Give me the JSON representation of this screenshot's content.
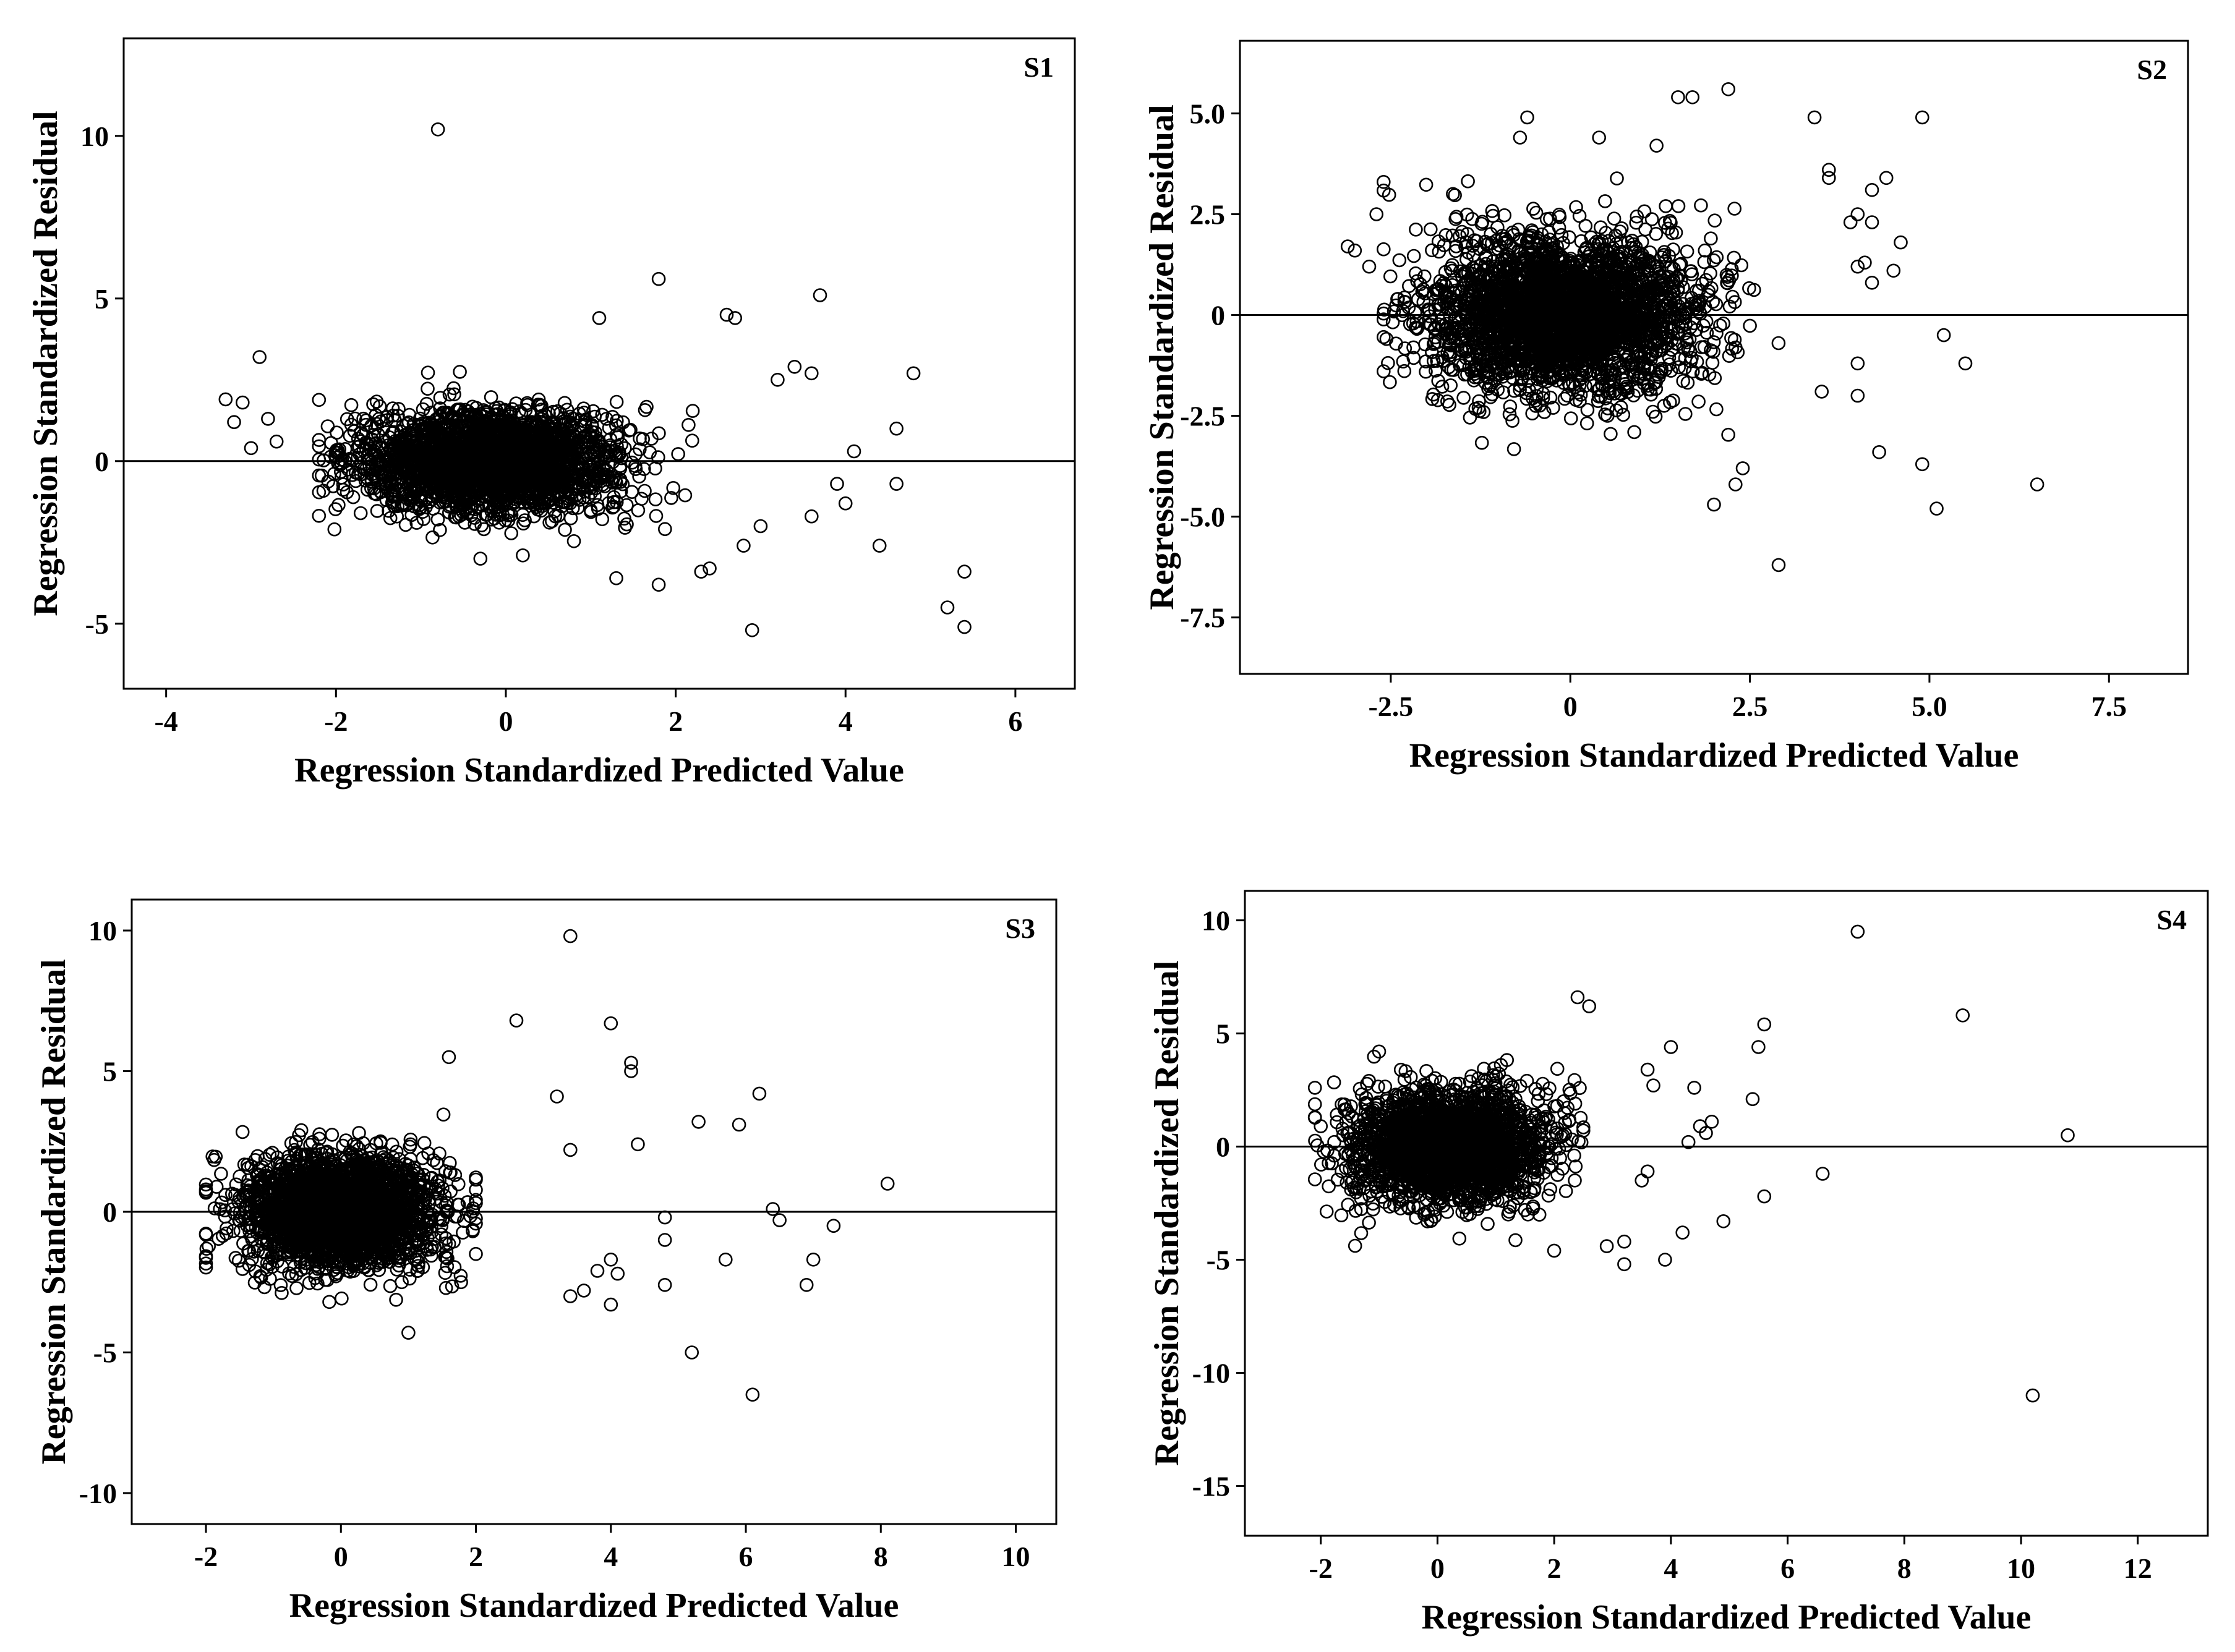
{
  "figure": {
    "color_points": "#000000",
    "color_axes": "#000000"
  },
  "chart_data": [
    {
      "type": "scatter",
      "title": "S1",
      "xlabel": "Regression Standardized Predicted Value",
      "ylabel": "Regression Standardized Residual",
      "xlim": [
        -4.5,
        6.7
      ],
      "ylim": [
        -7,
        13
      ],
      "xticks": [
        -4,
        -2,
        0,
        2,
        4,
        6
      ],
      "xtick_labels": [
        "-4",
        "-2",
        "0",
        "2",
        "4",
        "6"
      ],
      "yticks": [
        -5,
        0,
        5,
        10
      ],
      "ytick_labels": [
        "-5",
        "0",
        "5",
        "10"
      ],
      "reference_line_y": 0,
      "cluster": {
        "center_x": -0.2,
        "spread_x": 0.75,
        "spread_y": 0.7,
        "count": 2600,
        "x_range": [
          -2.2,
          2.2
        ]
      },
      "outliers": [
        [
          -0.8,
          10.2
        ],
        [
          1.8,
          5.6
        ],
        [
          3.7,
          5.1
        ],
        [
          2.6,
          4.5
        ],
        [
          2.7,
          4.4
        ],
        [
          1.1,
          4.4
        ],
        [
          4.8,
          2.7
        ],
        [
          3.4,
          2.9
        ],
        [
          3.6,
          2.7
        ],
        [
          3.2,
          2.5
        ],
        [
          4.6,
          1.0
        ],
        [
          4.1,
          0.3
        ],
        [
          3.9,
          -0.7
        ],
        [
          4.6,
          -0.7
        ],
        [
          4.0,
          -1.3
        ],
        [
          3.6,
          -1.7
        ],
        [
          3.0,
          -2.0
        ],
        [
          4.4,
          -2.6
        ],
        [
          2.8,
          -2.6
        ],
        [
          2.3,
          -3.4
        ],
        [
          2.4,
          -3.3
        ],
        [
          2.9,
          -5.2
        ],
        [
          5.4,
          -3.4
        ],
        [
          5.2,
          -4.5
        ],
        [
          5.4,
          -5.1
        ],
        [
          1.3,
          -3.6
        ],
        [
          1.8,
          -3.8
        ],
        [
          -2.9,
          3.2
        ],
        [
          -3.3,
          1.9
        ],
        [
          -3.1,
          1.8
        ],
        [
          -3.2,
          1.2
        ],
        [
          -2.8,
          1.3
        ],
        [
          -3.0,
          0.4
        ],
        [
          -2.7,
          0.6
        ],
        [
          -0.3,
          -3.0
        ],
        [
          0.2,
          -2.9
        ]
      ]
    },
    {
      "type": "scatter",
      "title": "S2",
      "xlabel": "Regression Standardized Predicted Value",
      "ylabel": "Regression Standardized Residual",
      "xlim": [
        -4.6,
        8.6
      ],
      "ylim": [
        -8.9,
        6.8
      ],
      "xticks": [
        -2.5,
        0,
        2.5,
        5.0,
        7.5
      ],
      "xtick_labels": [
        "-2.5",
        "0",
        "2.5",
        "5.0",
        "7.5"
      ],
      "yticks": [
        -7.5,
        -5.0,
        -2.5,
        0,
        2.5,
        5.0
      ],
      "ytick_labels": [
        "-7.5",
        "-5.0",
        "-2.5",
        "0",
        "2.5",
        "5.0"
      ],
      "reference_line_y": 0,
      "cluster": {
        "center_x": -0.1,
        "spread_x": 0.9,
        "spread_y": 0.85,
        "count": 3000,
        "x_range": [
          -2.6,
          3.5
        ]
      },
      "outliers": [
        [
          -0.6,
          4.9
        ],
        [
          1.5,
          5.4
        ],
        [
          1.7,
          5.4
        ],
        [
          2.2,
          5.6
        ],
        [
          3.4,
          4.9
        ],
        [
          4.9,
          4.9
        ],
        [
          0.4,
          4.4
        ],
        [
          -0.7,
          4.4
        ],
        [
          1.2,
          4.2
        ],
        [
          3.6,
          3.6
        ],
        [
          3.6,
          3.4
        ],
        [
          4.4,
          3.4
        ],
        [
          4.2,
          3.1
        ],
        [
          4.0,
          2.5
        ],
        [
          3.9,
          2.3
        ],
        [
          4.2,
          2.3
        ],
        [
          4.6,
          1.8
        ],
        [
          4.5,
          1.1
        ],
        [
          4.1,
          1.3
        ],
        [
          4.0,
          1.2
        ],
        [
          4.2,
          0.8
        ],
        [
          5.2,
          -0.5
        ],
        [
          5.5,
          -1.2
        ],
        [
          4.0,
          -1.2
        ],
        [
          3.5,
          -1.9
        ],
        [
          4.0,
          -2.0
        ],
        [
          4.3,
          -3.4
        ],
        [
          4.9,
          -3.7
        ],
        [
          5.1,
          -4.8
        ],
        [
          6.5,
          -4.2
        ],
        [
          2.9,
          -6.2
        ],
        [
          2.0,
          -4.7
        ],
        [
          2.3,
          -4.2
        ],
        [
          2.4,
          -3.8
        ],
        [
          -3.0,
          1.6
        ],
        [
          -2.8,
          1.2
        ],
        [
          -2.7,
          2.5
        ],
        [
          -2.6,
          3.3
        ],
        [
          -2.4,
          0.4
        ],
        [
          -3.1,
          1.7
        ]
      ]
    },
    {
      "type": "scatter",
      "title": "S3",
      "xlabel": "Regression Standardized Predicted Value",
      "ylabel": "Regression Standardized Residual",
      "xlim": [
        -3.1,
        10.6
      ],
      "ylim": [
        -11.1,
        11.1
      ],
      "xticks": [
        -2,
        0,
        2,
        4,
        6,
        8,
        10
      ],
      "xtick_labels": [
        "-2",
        "0",
        "2",
        "4",
        "6",
        "8",
        "10"
      ],
      "yticks": [
        -10,
        -5,
        0,
        5,
        10
      ],
      "ytick_labels": [
        "-10",
        "-5",
        "0",
        "5",
        "10"
      ],
      "reference_line_y": 0,
      "cluster": {
        "center_x": 0.0,
        "spread_x": 0.7,
        "spread_y": 0.9,
        "count": 2800,
        "x_range": [
          -2.0,
          2.0
        ]
      },
      "outliers": [
        [
          3.4,
          9.8
        ],
        [
          2.6,
          6.8
        ],
        [
          4.0,
          6.7
        ],
        [
          4.3,
          5.3
        ],
        [
          4.3,
          5.0
        ],
        [
          1.6,
          5.5
        ],
        [
          6.2,
          4.2
        ],
        [
          3.2,
          4.1
        ],
        [
          5.3,
          3.2
        ],
        [
          5.9,
          3.1
        ],
        [
          4.4,
          2.4
        ],
        [
          3.4,
          2.2
        ],
        [
          8.1,
          1.0
        ],
        [
          6.4,
          0.1
        ],
        [
          6.5,
          -0.3
        ],
        [
          7.3,
          -0.5
        ],
        [
          4.8,
          -0.2
        ],
        [
          4.8,
          -1.0
        ],
        [
          5.7,
          -1.7
        ],
        [
          7.0,
          -1.7
        ],
        [
          6.9,
          -2.6
        ],
        [
          4.8,
          -2.6
        ],
        [
          4.0,
          -1.7
        ],
        [
          4.1,
          -2.2
        ],
        [
          3.8,
          -2.1
        ],
        [
          4.0,
          -3.3
        ],
        [
          3.6,
          -2.8
        ],
        [
          5.2,
          -5.0
        ],
        [
          6.1,
          -6.5
        ],
        [
          1.0,
          -4.3
        ],
        [
          3.4,
          -3.0
        ]
      ]
    },
    {
      "type": "scatter",
      "title": "S4",
      "xlabel": "Regression Standardized Predicted Value",
      "ylabel": "Regression Standardized Residual",
      "xlim": [
        -3.3,
        13.2
      ],
      "ylim": [
        -17.2,
        11.3
      ],
      "xticks": [
        -2,
        0,
        2,
        4,
        6,
        8,
        10,
        12
      ],
      "xtick_labels": [
        "-2",
        "0",
        "2",
        "4",
        "6",
        "8",
        "10",
        "12"
      ],
      "yticks": [
        -15,
        -10,
        -5,
        0,
        5,
        10
      ],
      "ytick_labels": [
        "-15",
        "-10",
        "-5",
        "0",
        "5",
        "10"
      ],
      "reference_line_y": 0,
      "cluster": {
        "center_x": 0.2,
        "spread_x": 0.8,
        "spread_y": 1.1,
        "count": 2600,
        "x_range": [
          -2.1,
          2.5
        ]
      },
      "outliers": [
        [
          7.2,
          9.5
        ],
        [
          9.0,
          5.8
        ],
        [
          10.8,
          0.5
        ],
        [
          5.6,
          5.4
        ],
        [
          5.5,
          4.4
        ],
        [
          2.4,
          6.6
        ],
        [
          2.6,
          6.2
        ],
        [
          4.0,
          4.4
        ],
        [
          3.6,
          3.4
        ],
        [
          3.7,
          2.7
        ],
        [
          4.4,
          2.6
        ],
        [
          5.4,
          2.1
        ],
        [
          4.5,
          0.9
        ],
        [
          4.6,
          0.6
        ],
        [
          4.7,
          1.1
        ],
        [
          4.3,
          0.2
        ],
        [
          6.6,
          -1.2
        ],
        [
          5.6,
          -2.2
        ],
        [
          4.9,
          -3.3
        ],
        [
          4.2,
          -3.8
        ],
        [
          3.9,
          -5.0
        ],
        [
          3.2,
          -4.2
        ],
        [
          3.2,
          -5.2
        ],
        [
          2.9,
          -4.4
        ],
        [
          2.0,
          -4.6
        ],
        [
          10.2,
          -11.0
        ],
        [
          3.6,
          -1.1
        ],
        [
          3.5,
          -1.5
        ],
        [
          -1.0,
          4.2
        ],
        [
          -2.1,
          1.3
        ],
        [
          -2.0,
          0.9
        ]
      ]
    }
  ]
}
